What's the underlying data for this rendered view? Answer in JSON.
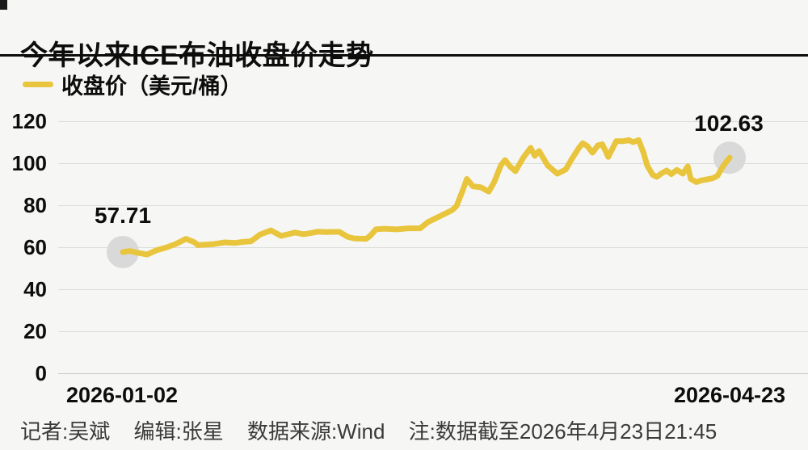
{
  "page": {
    "background": "#f6f6f4"
  },
  "header": {
    "title": "今年以来ICE布油收盘价走势"
  },
  "legend": {
    "label": "收盘价（美元/桶）",
    "swatch_color": "#e8c53c"
  },
  "axis": {
    "yticks": [
      "120",
      "100",
      "80",
      "60",
      "40",
      "20",
      "0"
    ],
    "x_start_label": "2026-01-02",
    "x_end_label": "2026-04-23"
  },
  "annotations": {
    "start_value": "57.71",
    "end_value": "102.63"
  },
  "footer": {
    "reporter": "记者:吴斌",
    "editor": "编辑:张星",
    "source": "数据来源:Wind",
    "note": "注:数据截至2026年4月23日21:45"
  },
  "chart_data": {
    "type": "line",
    "title": "今年以来ICE布油收盘价走势",
    "xlabel": "",
    "ylabel": "收盘价（美元/桶）",
    "x_range": [
      "2026-01-02",
      "2026-04-23"
    ],
    "ylim": [
      0,
      120
    ],
    "yticks": [
      120,
      100,
      80,
      60,
      40,
      20,
      0
    ],
    "grid": true,
    "legend_position": "top-left",
    "line_color": "#e8c53c",
    "marker_color": "#d9d9d9",
    "first_point": {
      "x": "2026-01-02",
      "value": 57.71
    },
    "last_point": {
      "x": "2026-04-23",
      "value": 102.63
    },
    "series": [
      {
        "name": "收盘价（美元/桶）",
        "points": [
          [
            0.0,
            57.71
          ],
          [
            0.011,
            58.2
          ],
          [
            0.024,
            57.4
          ],
          [
            0.04,
            56.5
          ],
          [
            0.055,
            58.5
          ],
          [
            0.071,
            59.8
          ],
          [
            0.087,
            61.5
          ],
          [
            0.104,
            64.0
          ],
          [
            0.117,
            62.5
          ],
          [
            0.124,
            61.0
          ],
          [
            0.135,
            61.2
          ],
          [
            0.15,
            61.5
          ],
          [
            0.168,
            62.3
          ],
          [
            0.184,
            62.0
          ],
          [
            0.197,
            62.5
          ],
          [
            0.211,
            62.8
          ],
          [
            0.226,
            66.0
          ],
          [
            0.244,
            68.0
          ],
          [
            0.261,
            65.4
          ],
          [
            0.284,
            67.0
          ],
          [
            0.298,
            66.2
          ],
          [
            0.311,
            66.8
          ],
          [
            0.321,
            67.4
          ],
          [
            0.334,
            67.2
          ],
          [
            0.348,
            67.3
          ],
          [
            0.357,
            67.3
          ],
          [
            0.37,
            65.0
          ],
          [
            0.381,
            64.2
          ],
          [
            0.401,
            64.0
          ],
          [
            0.408,
            65.5
          ],
          [
            0.417,
            68.5
          ],
          [
            0.431,
            68.8
          ],
          [
            0.452,
            68.5
          ],
          [
            0.47,
            69.0
          ],
          [
            0.49,
            69.0
          ],
          [
            0.503,
            72.0
          ],
          [
            0.53,
            75.8
          ],
          [
            0.543,
            77.7
          ],
          [
            0.55,
            79.6
          ],
          [
            0.56,
            87.0
          ],
          [
            0.567,
            92.5
          ],
          [
            0.577,
            89.0
          ],
          [
            0.59,
            88.5
          ],
          [
            0.603,
            86.5
          ],
          [
            0.612,
            91.0
          ],
          [
            0.623,
            99.0
          ],
          [
            0.63,
            101.5
          ],
          [
            0.638,
            98.5
          ],
          [
            0.647,
            96.2
          ],
          [
            0.66,
            102.7
          ],
          [
            0.672,
            107.3
          ],
          [
            0.679,
            103.5
          ],
          [
            0.686,
            105.8
          ],
          [
            0.7,
            99.0
          ],
          [
            0.716,
            95.0
          ],
          [
            0.73,
            97.0
          ],
          [
            0.74,
            102.0
          ],
          [
            0.752,
            107.5
          ],
          [
            0.758,
            109.5
          ],
          [
            0.766,
            108.0
          ],
          [
            0.774,
            105.0
          ],
          [
            0.783,
            108.5
          ],
          [
            0.79,
            109.0
          ],
          [
            0.797,
            105.0
          ],
          [
            0.8,
            103.0
          ],
          [
            0.807,
            107.0
          ],
          [
            0.813,
            110.5
          ],
          [
            0.825,
            110.5
          ],
          [
            0.834,
            111.0
          ],
          [
            0.841,
            110.0
          ],
          [
            0.85,
            111.0
          ],
          [
            0.858,
            105.0
          ],
          [
            0.864,
            99.0
          ],
          [
            0.873,
            94.5
          ],
          [
            0.88,
            93.5
          ],
          [
            0.887,
            95.0
          ],
          [
            0.896,
            96.5
          ],
          [
            0.904,
            94.8
          ],
          [
            0.913,
            96.8
          ],
          [
            0.923,
            95.0
          ],
          [
            0.931,
            98.5
          ],
          [
            0.936,
            92.5
          ],
          [
            0.945,
            91.0
          ],
          [
            0.953,
            91.8
          ],
          [
            0.963,
            92.3
          ],
          [
            0.972,
            92.8
          ],
          [
            0.98,
            94.0
          ],
          [
            0.989,
            98.5
          ],
          [
            1.0,
            102.63
          ]
        ]
      }
    ]
  }
}
